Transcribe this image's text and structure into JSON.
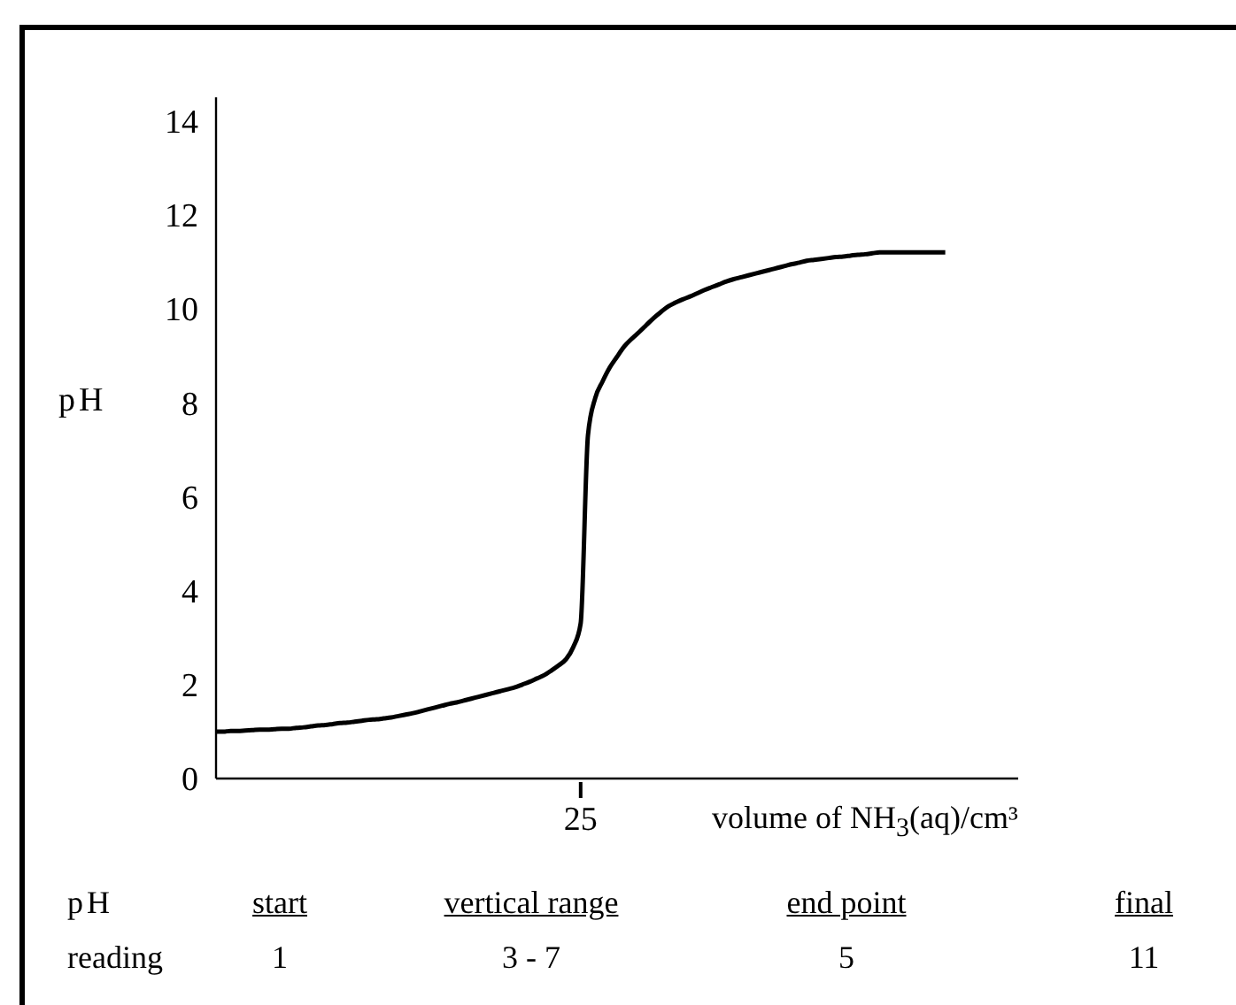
{
  "chart_data": {
    "type": "line",
    "xlabel": "volume of NH$_{3}$(aq)/cm³",
    "ylabel": "pH",
    "categories": [
      null,
      null,
      null,
      null,
      null,
      null,
      null,
      null,
      null,
      null,
      null,
      null,
      null,
      null,
      null,
      null,
      null,
      null,
      null,
      null,
      null,
      null,
      null,
      null,
      null,
      null,
      null,
      null,
      null,
      null,
      null,
      null,
      null,
      null,
      null,
      null,
      null,
      null,
      null,
      null,
      null,
      null,
      null,
      null,
      null,
      null,
      null,
      null,
      null,
      null,
      "25",
      null,
      null,
      null,
      null,
      null,
      null,
      null,
      null,
      null,
      null,
      null,
      null,
      null,
      null,
      null,
      null,
      null,
      null,
      null,
      null,
      null,
      null,
      null,
      null,
      null,
      null,
      null,
      null,
      null,
      null,
      null,
      null,
      null,
      null,
      null,
      null,
      null,
      null,
      null,
      null,
      null,
      null,
      null,
      null,
      null,
      null,
      null,
      null,
      null,
      null,
      null,
      null,
      null,
      null,
      null,
      null,
      null,
      null,
      null,
      null
    ],
    "series": [
      {
        "color": "#000000",
        "values": [
          1.0,
          1.0,
          1.01,
          1.01,
          1.02,
          1.03,
          1.04,
          1.04,
          1.05,
          1.06,
          1.06,
          1.08,
          1.09,
          1.11,
          1.13,
          1.14,
          1.16,
          1.18,
          1.19,
          1.21,
          1.23,
          1.25,
          1.26,
          1.28,
          1.3,
          1.33,
          1.36,
          1.39,
          1.43,
          1.47,
          1.51,
          1.55,
          1.59,
          1.62,
          1.66,
          1.7,
          1.74,
          1.78,
          1.82,
          1.86,
          1.9,
          1.94,
          2.0,
          2.06,
          2.13,
          2.2,
          2.3,
          2.41,
          2.54,
          2.8,
          3.3,
          7.3,
          8.1,
          8.45,
          8.75,
          8.98,
          9.2,
          9.36,
          9.5,
          9.65,
          9.8,
          9.93,
          10.05,
          10.13,
          10.2,
          10.26,
          10.33,
          10.4,
          10.46,
          10.52,
          10.58,
          10.63,
          10.67,
          10.71,
          10.75,
          10.79,
          10.83,
          10.87,
          10.91,
          10.95,
          10.98,
          11.02,
          11.04,
          11.06,
          11.08,
          11.1,
          11.11,
          11.13,
          11.15,
          11.16,
          11.18,
          11.2,
          11.2,
          11.2,
          11.2,
          11.2,
          11.2,
          11.2,
          11.2,
          11.2,
          11.2,
          null,
          null,
          null,
          null,
          null,
          null,
          null,
          null,
          null,
          null
        ]
      }
    ],
    "ylim": [
      0,
      14.5
    ],
    "yticks": [
      0,
      2,
      4,
      6,
      8,
      10,
      12,
      14
    ],
    "marker": "none",
    "line_style": "solid",
    "grid": false,
    "annotations": [
      "pH",
      "start",
      "vertical range",
      "end point",
      "final",
      "reading",
      "1",
      "3 - 7",
      "5",
      "11"
    ]
  }
}
